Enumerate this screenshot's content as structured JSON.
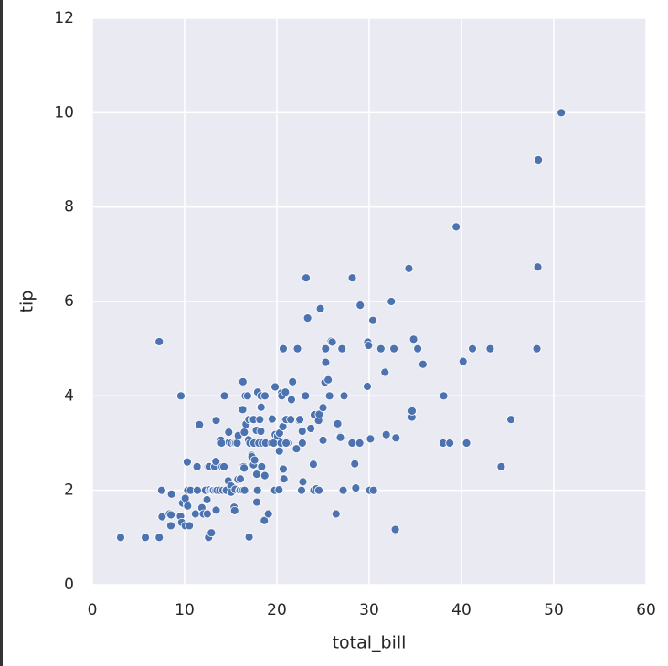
{
  "chart_data": {
    "type": "scatter",
    "xlabel": "total_bill",
    "ylabel": "tip",
    "color": "#4c72b0",
    "grid": true,
    "xlim": [
      0,
      60
    ],
    "ylim": [
      0,
      12
    ],
    "xticks": [
      0,
      10,
      20,
      30,
      40,
      50,
      60
    ],
    "yticks": [
      0,
      2,
      4,
      6,
      8,
      10,
      12
    ],
    "x": [
      3.07,
      5.75,
      7.25,
      7.25,
      7.51,
      7.56,
      8.35,
      8.51,
      8.52,
      8.58,
      9.55,
      9.6,
      9.68,
      9.78,
      10.07,
      10.27,
      10.33,
      10.34,
      10.07,
      10.29,
      10.51,
      10.63,
      11.17,
      11.35,
      11.38,
      11.61,
      11.87,
      12.03,
      12.26,
      12.43,
      12.46,
      12.54,
      12.6,
      12.66,
      12.69,
      12.74,
      12.9,
      13,
      13.03,
      13.13,
      13.27,
      13.39,
      13.42,
      13.37,
      13.42,
      13.51,
      13.81,
      13.94,
      14,
      14.07,
      14.15,
      14.26,
      14.31,
      14.48,
      14.52,
      14.73,
      14.78,
      14.83,
      15.01,
      15.04,
      15.06,
      15.36,
      15.38,
      15.42,
      15.48,
      15.53,
      15.69,
      15.77,
      15.81,
      15.95,
      16,
      16.04,
      16.21,
      16.27,
      16.29,
      16.31,
      16.32,
      16.4,
      16.45,
      16.47,
      16.49,
      16.58,
      16.66,
      16.82,
      16.93,
      16.97,
      16.99,
      17.07,
      17.26,
      17.29,
      17.31,
      17.46,
      17.47,
      17.51,
      17.59,
      17.78,
      17.81,
      17.82,
      17.89,
      17.92,
      18.04,
      18.15,
      18.24,
      18.26,
      18.28,
      18.29,
      18.35,
      18.43,
      18.64,
      18.69,
      18.71,
      18.78,
      19.08,
      19.44,
      19.49,
      19.65,
      19.77,
      19.81,
      19.82,
      20.08,
      20.23,
      20.27,
      20.29,
      20.45,
      20.49,
      20.53,
      20.65,
      20.69,
      20.76,
      20.9,
      20.92,
      21.01,
      21.16,
      21.5,
      21.58,
      21.7,
      22.12,
      22.23,
      22.42,
      22.49,
      22.67,
      22.75,
      22.76,
      22.82,
      23.1,
      23.17,
      23.33,
      23.68,
      23.95,
      24.01,
      24.06,
      24.27,
      24.52,
      24.55,
      24.59,
      25,
      25.21,
      25.28,
      25.29,
      25.56,
      25.71,
      25.89,
      26.41,
      26.59,
      26.86,
      26.88,
      27.05,
      27.18,
      27.2,
      27.28,
      28.15,
      28.17,
      28.44,
      28.55,
      28.97,
      29.03,
      29.8,
      29.85,
      29.93,
      30.06,
      30.14,
      30.4,
      30.46,
      31.27,
      31.71,
      31.85,
      32.4,
      32.68,
      32.83,
      32.9,
      34.3,
      34.63,
      34.65,
      34.81,
      35.26,
      35.83,
      38.01,
      38.07,
      38.73,
      39.42,
      40.17,
      40.55,
      41.19,
      43.11,
      44.3,
      45.35,
      48.17,
      48.27,
      48.33,
      50.81,
      24.71,
      20.69,
      26,
      21,
      25
    ],
    "y": [
      1,
      1,
      1,
      5.15,
      2,
      1.44,
      1.5,
      1.25,
      1.48,
      1.92,
      1.45,
      4,
      1.32,
      1.73,
      1.25,
      1.71,
      1.67,
      2,
      1.83,
      2.6,
      1.25,
      2,
      1.5,
      2.5,
      2,
      3.39,
      1.63,
      1.5,
      2,
      1.8,
      1.5,
      2.5,
      1,
      2.5,
      2,
      2.01,
      1.1,
      2,
      2,
      2,
      2.5,
      2.61,
      3.48,
      2,
      1.58,
      2,
      2,
      3.06,
      3,
      2.5,
      2,
      2.5,
      4,
      2,
      2,
      2.2,
      3.23,
      3.02,
      2.09,
      1.96,
      3,
      1.64,
      3,
      1.57,
      2.02,
      3,
      3,
      2.23,
      3.16,
      2,
      2,
      2.24,
      2,
      2.5,
      3.71,
      2,
      4.3,
      2.5,
      2.47,
      3.23,
      2,
      4,
      3.4,
      4,
      3.07,
      3.5,
      1.01,
      3,
      2.74,
      2.71,
      3.5,
      2.54,
      3.5,
      3,
      2.64,
      3.27,
      2.34,
      1.75,
      2,
      4.08,
      3,
      3.5,
      3.76,
      3.25,
      4,
      3.76,
      2.5,
      3,
      1.36,
      2.31,
      4,
      3,
      1.5,
      3,
      3.51,
      3,
      2,
      4.19,
      3.18,
      3.15,
      2.01,
      2.83,
      3.21,
      3,
      4.06,
      4,
      3.35,
      2.45,
      2.24,
      3.5,
      4.08,
      3.5,
      3,
      3.5,
      3.92,
      4.3,
      2.88,
      5,
      3.48,
      3.5,
      2,
      3.25,
      3,
      2.18,
      4,
      6.5,
      5.65,
      3.31,
      2.55,
      2,
      3.6,
      2.03,
      3.48,
      2,
      3.61,
      3.75,
      4.29,
      5,
      4.71,
      4.34,
      4,
      5.16,
      1.5,
      3.41,
      3.14,
      3.12,
      5,
      2,
      4,
      4,
      3,
      6.5,
      2.56,
      2.05,
      3,
      5.92,
      4.2,
      5.14,
      5.07,
      2,
      3.09,
      5.6,
      2,
      5,
      4.5,
      3.18,
      6,
      5,
      1.17,
      3.11,
      6.7,
      3.55,
      3.68,
      5.2,
      5,
      4.67,
      3,
      4,
      3,
      7.58,
      4.73,
      3,
      5,
      5,
      2.5,
      3.5,
      5,
      6.73,
      9,
      10,
      5.85,
      5,
      5.14,
      3,
      3.06
    ]
  }
}
